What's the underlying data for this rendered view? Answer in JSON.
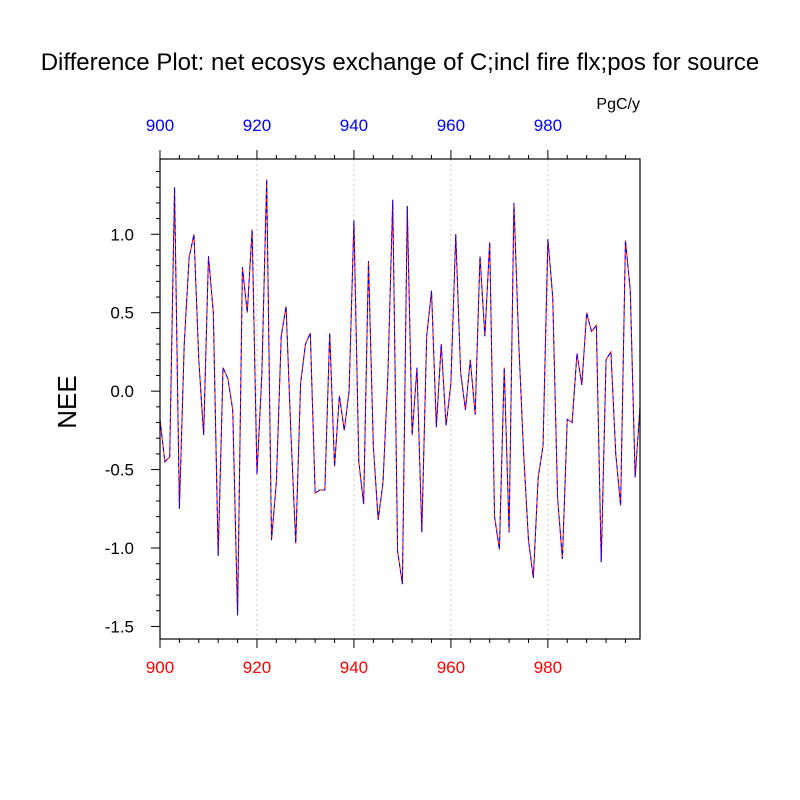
{
  "chart_data": {
    "type": "line",
    "title": "Difference Plot: net ecosys exchange of C;incl fire flx;pos for source",
    "units": "PgC/y",
    "ylabel": "NEE",
    "xlabel": "",
    "xlim": [
      900,
      999
    ],
    "ylim": [
      -1.58,
      1.48
    ],
    "x_ticks": [
      900,
      920,
      940,
      960,
      980
    ],
    "y_ticks": [
      -1.5,
      -1.0,
      -0.5,
      0.0,
      0.5,
      1.0
    ],
    "y_tick_labels": [
      "-1.5",
      "-1.0",
      "-0.5",
      "0.0",
      "0.5",
      "1.0"
    ],
    "top_axis_color": "#0000ff",
    "bottom_axis_color": "#ff0000",
    "vertical_gridlines": [
      920,
      940,
      960,
      980
    ],
    "series": [
      {
        "color_primary": "#ff0000",
        "color_overlay": "#0000ff",
        "dash": "dashed",
        "x": [
          900,
          901,
          902,
          903,
          904,
          905,
          906,
          907,
          908,
          909,
          910,
          911,
          912,
          913,
          914,
          915,
          916,
          917,
          918,
          919,
          920,
          921,
          922,
          923,
          924,
          925,
          926,
          927,
          928,
          929,
          930,
          931,
          932,
          933,
          934,
          935,
          936,
          937,
          938,
          939,
          940,
          941,
          942,
          943,
          944,
          945,
          946,
          947,
          948,
          949,
          950,
          951,
          952,
          953,
          954,
          955,
          956,
          957,
          958,
          959,
          960,
          961,
          962,
          963,
          964,
          965,
          966,
          967,
          968,
          969,
          970,
          971,
          972,
          973,
          974,
          975,
          976,
          977,
          978,
          979,
          980,
          981,
          982,
          983,
          984,
          985,
          986,
          987,
          988,
          989,
          990,
          991,
          992,
          993,
          994,
          995,
          996,
          997,
          998,
          999
        ],
        "y": [
          -0.18,
          -0.45,
          -0.42,
          1.3,
          -0.75,
          0.3,
          0.85,
          1.0,
          0.2,
          -0.28,
          0.86,
          0.5,
          -1.05,
          0.15,
          0.08,
          -0.12,
          -1.43,
          0.79,
          0.5,
          1.03,
          -0.53,
          0.1,
          1.35,
          -0.95,
          -0.58,
          0.35,
          0.54,
          -0.27,
          -0.97,
          0.05,
          0.3,
          0.37,
          -0.65,
          -0.63,
          -0.63,
          0.37,
          -0.48,
          -0.03,
          -0.25,
          0.0,
          1.09,
          -0.45,
          -0.72,
          0.83,
          -0.35,
          -0.82,
          -0.58,
          0.1,
          1.22,
          -1.02,
          -1.23,
          1.18,
          -0.28,
          0.15,
          -0.9,
          0.35,
          0.64,
          -0.23,
          0.3,
          -0.22,
          0.05,
          1.0,
          0.12,
          -0.12,
          0.2,
          -0.15,
          0.86,
          0.35,
          0.95,
          -0.8,
          -1.01,
          0.15,
          -0.9,
          1.2,
          0.3,
          -0.4,
          -0.95,
          -1.19,
          -0.55,
          -0.35,
          0.97,
          0.6,
          -0.68,
          -1.07,
          -0.18,
          -0.2,
          0.24,
          0.04,
          0.5,
          0.38,
          0.42,
          -1.09,
          0.2,
          0.25,
          -0.4,
          -0.73,
          0.96,
          0.64,
          -0.55,
          -0.1
        ]
      }
    ]
  }
}
